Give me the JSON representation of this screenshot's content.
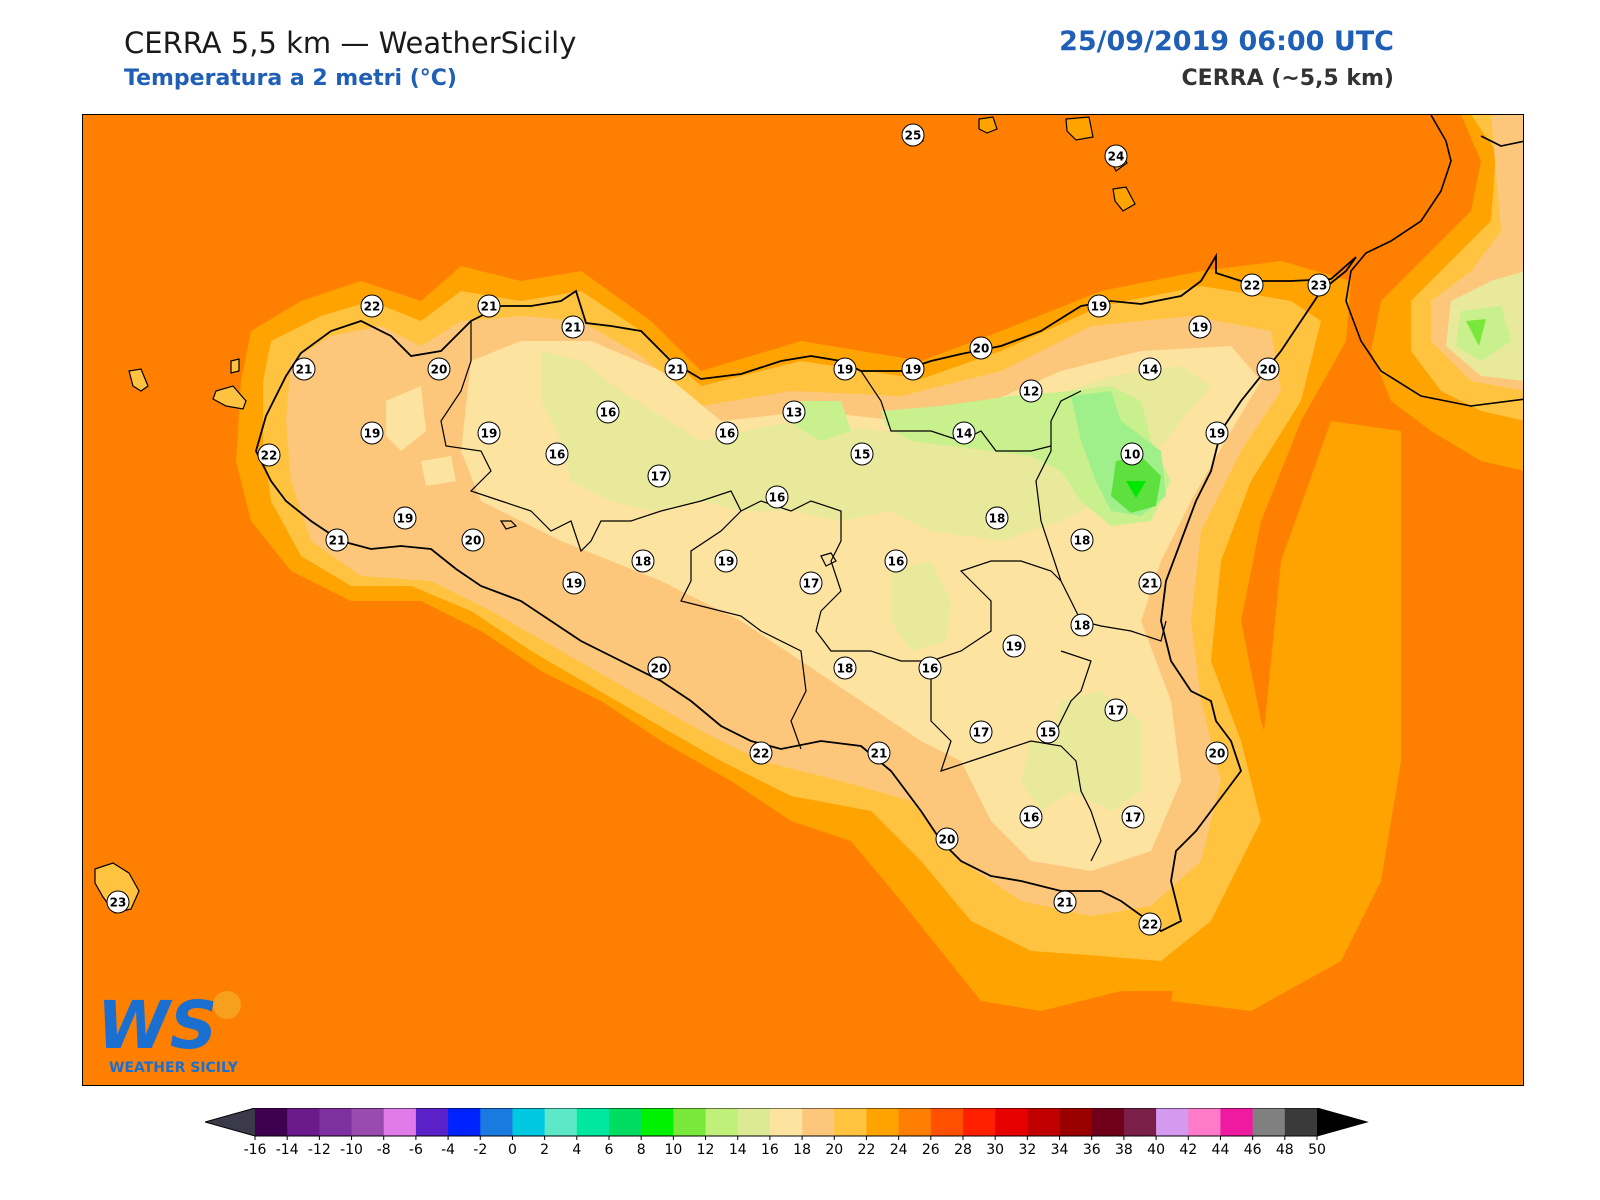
{
  "header": {
    "title": "CERRA 5,5 km — WeatherSicily",
    "subtitle": "Temperatura a 2 metri (°C)",
    "datetime": "25/09/2019 06:00 UTC",
    "model": "CERRA (~5,5 km)"
  },
  "logo": {
    "text": "WEATHER SICILY",
    "letters": "WS"
  },
  "colors": {
    "sea": "#ff8000",
    "coast_band_1": "#ffa300",
    "coast_band_2": "#ffc33f",
    "land_20": "#fdc77b",
    "land_18": "#fde3a0",
    "land_16": "#e8e99a",
    "land_14": "#c8f08c",
    "land_12": "#9ff08a",
    "land_10": "#5ee13e",
    "title_blue": "#1f5fb5"
  },
  "stations": [
    {
      "value": "25"
    },
    {
      "value": "24"
    },
    {
      "value": "22"
    },
    {
      "value": "21"
    },
    {
      "value": "21"
    },
    {
      "value": "21"
    },
    {
      "value": "20"
    },
    {
      "value": "22"
    },
    {
      "value": "19"
    },
    {
      "value": "19"
    },
    {
      "value": "21"
    },
    {
      "value": "19"
    },
    {
      "value": "20"
    },
    {
      "value": "16"
    },
    {
      "value": "16"
    },
    {
      "value": "21"
    },
    {
      "value": "17"
    },
    {
      "value": "16"
    },
    {
      "value": "13"
    },
    {
      "value": "19"
    },
    {
      "value": "16"
    },
    {
      "value": "15"
    },
    {
      "value": "19"
    },
    {
      "value": "20"
    },
    {
      "value": "12"
    },
    {
      "value": "19"
    },
    {
      "value": "14"
    },
    {
      "value": "14"
    },
    {
      "value": "19"
    },
    {
      "value": "22"
    },
    {
      "value": "23"
    },
    {
      "value": "19"
    },
    {
      "value": "20"
    },
    {
      "value": "19"
    },
    {
      "value": "10"
    },
    {
      "value": "18"
    },
    {
      "value": "18"
    },
    {
      "value": "20"
    },
    {
      "value": "18"
    },
    {
      "value": "19"
    },
    {
      "value": "17"
    },
    {
      "value": "16"
    },
    {
      "value": "21"
    },
    {
      "value": "19"
    },
    {
      "value": "18"
    },
    {
      "value": "16"
    },
    {
      "value": "20"
    },
    {
      "value": "18"
    },
    {
      "value": "22"
    },
    {
      "value": "21"
    },
    {
      "value": "17"
    },
    {
      "value": "15"
    },
    {
      "value": "17"
    },
    {
      "value": "20"
    },
    {
      "value": "16"
    },
    {
      "value": "17"
    },
    {
      "value": "20"
    },
    {
      "value": "21"
    },
    {
      "value": "22"
    },
    {
      "value": "23"
    }
  ],
  "colorbar": {
    "ticks": [
      "-16",
      "-14",
      "-12",
      "-10",
      "-8",
      "-6",
      "-4",
      "-2",
      "0",
      "2",
      "4",
      "6",
      "8",
      "10",
      "12",
      "14",
      "16",
      "18",
      "20",
      "22",
      "24",
      "26",
      "28",
      "30",
      "32",
      "34",
      "36",
      "38",
      "40",
      "42",
      "44",
      "46",
      "48",
      "50"
    ],
    "colors": [
      "#400050",
      "#6a1a8a",
      "#7e2fa0",
      "#9a4bb0",
      "#e07ae8",
      "#5a22c8",
      "#0022ff",
      "#1a7ae0",
      "#00c8e0",
      "#5de8c8",
      "#00e8a0",
      "#00dc60",
      "#00f000",
      "#7ae83a",
      "#c0f07a",
      "#dcea96",
      "#fde3a0",
      "#fdc77b",
      "#ffc33f",
      "#ffa300",
      "#ff8000",
      "#ff5000",
      "#ff2000",
      "#e60000",
      "#c00000",
      "#9a0000",
      "#70001a",
      "#7a1f48",
      "#d49af0",
      "#ff7ac8",
      "#f01aa0",
      "#808080",
      "#3a3a3a"
    ],
    "under_color": "#3a3a4a",
    "over_color": "#000000"
  }
}
